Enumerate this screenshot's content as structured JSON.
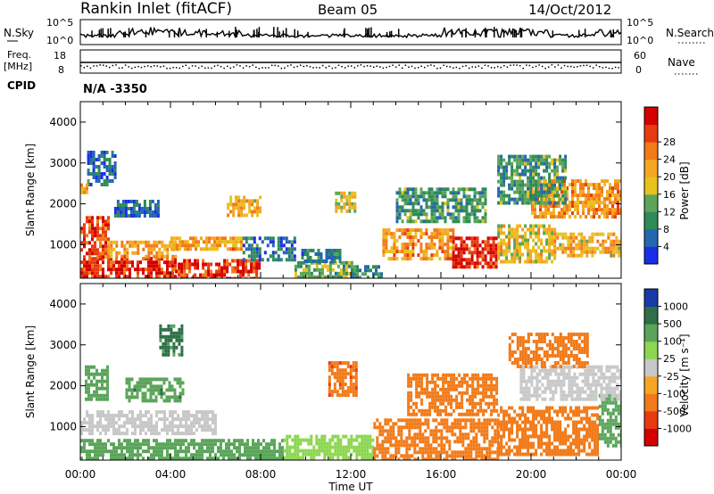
{
  "header": {
    "station": "Rankin Inlet (fitACF)",
    "beam": "Beam 05",
    "date": "14/Oct/2012"
  },
  "noise_panel": {
    "left_label": "N.Sky",
    "right_label": "N.Search",
    "left_ticks": [
      "10^5",
      "10^0"
    ],
    "right_ticks": [
      "10^5",
      "10^0"
    ]
  },
  "freq_panel": {
    "left_label_line1": "Freq.",
    "left_label_line2": "[MHz]",
    "right_label": "Nave",
    "left_ticks": [
      "18",
      "8"
    ],
    "right_ticks": [
      "60",
      "0"
    ]
  },
  "cpid": {
    "label": "CPID",
    "value": "N/A -3350"
  },
  "chart_data": [
    {
      "type": "heatmap",
      "title": "",
      "xlabel": "Time UT",
      "ylabel": "Slant Range [km]",
      "x_ticks": [
        "00:00",
        "04:00",
        "08:00",
        "12:00",
        "16:00",
        "20:00",
        "00:00"
      ],
      "y_ticks": [
        "1000",
        "2000",
        "3000",
        "4000"
      ],
      "ylim": [
        180,
        4500
      ],
      "colorbar": {
        "label": "Power [dB]",
        "ticks": [
          "4",
          "8",
          "12",
          "16",
          "20",
          "24",
          "28"
        ],
        "colors": [
          "#1a2ee8",
          "#2466b0",
          "#2e8b57",
          "#5aa55a",
          "#e8c21a",
          "#f5a623",
          "#f27a18",
          "#e83a10",
          "#d40000"
        ]
      },
      "regions": [
        {
          "t0": 0.0,
          "t1": 4.2,
          "r0": 180,
          "r1": 700,
          "value": 28
        },
        {
          "t0": 0.0,
          "t1": 1.2,
          "r0": 700,
          "r1": 1700,
          "value": 26
        },
        {
          "t0": 1.2,
          "t1": 4.2,
          "r0": 700,
          "r1": 1100,
          "value": 20
        },
        {
          "t0": 4.2,
          "t1": 8.0,
          "r0": 180,
          "r1": 650,
          "value": 27
        },
        {
          "t0": 4.0,
          "t1": 7.2,
          "r0": 900,
          "r1": 1200,
          "value": 20
        },
        {
          "t0": 7.2,
          "t1": 9.5,
          "r0": 600,
          "r1": 1200,
          "value": 6
        },
        {
          "t0": 9.5,
          "t1": 12.0,
          "r0": 200,
          "r1": 600,
          "value": 12
        },
        {
          "t0": 9.8,
          "t1": 11.5,
          "r0": 600,
          "r1": 900,
          "value": 7
        },
        {
          "t0": 12.0,
          "t1": 13.4,
          "r0": 200,
          "r1": 500,
          "value": 8
        },
        {
          "t0": 13.4,
          "t1": 16.5,
          "r0": 700,
          "r1": 1400,
          "value": 21
        },
        {
          "t0": 16.5,
          "t1": 18.5,
          "r0": 450,
          "r1": 1200,
          "value": 29
        },
        {
          "t0": 18.5,
          "t1": 21.0,
          "r0": 600,
          "r1": 1500,
          "value": 17
        },
        {
          "t0": 21.0,
          "t1": 24.0,
          "r0": 700,
          "r1": 1300,
          "value": 19
        },
        {
          "t0": 20.0,
          "t1": 24.0,
          "r0": 1700,
          "r1": 2600,
          "value": 21
        },
        {
          "t0": 18.5,
          "t1": 21.5,
          "r0": 2000,
          "r1": 3200,
          "value": 10
        },
        {
          "t0": 14.0,
          "t1": 18.0,
          "r0": 1600,
          "r1": 2400,
          "value": 10
        },
        {
          "t0": 1.5,
          "t1": 3.5,
          "r0": 1700,
          "r1": 2100,
          "value": 5
        },
        {
          "t0": 6.5,
          "t1": 8.0,
          "r0": 1700,
          "r1": 2200,
          "value": 19
        },
        {
          "t0": 0.3,
          "t1": 1.5,
          "r0": 2500,
          "r1": 3300,
          "value": 6
        },
        {
          "t0": 11.3,
          "t1": 12.2,
          "r0": 1800,
          "r1": 2300,
          "value": 16
        },
        {
          "t0": 0.0,
          "t1": 0.3,
          "r0": 2300,
          "r1": 2500,
          "value": 20
        }
      ]
    },
    {
      "type": "heatmap",
      "title": "",
      "xlabel": "Time UT",
      "ylabel": "Slant Range [km]",
      "x_ticks": [
        "00:00",
        "04:00",
        "08:00",
        "12:00",
        "16:00",
        "20:00",
        "00:00"
      ],
      "y_ticks": [
        "1000",
        "2000",
        "3000",
        "4000"
      ],
      "ylim": [
        180,
        4500
      ],
      "colorbar": {
        "label": "Velocity [m s⁻¹]",
        "ticks": [
          "1000",
          "500",
          "100",
          "25",
          "-25",
          "-100",
          "-500",
          "-1000"
        ],
        "colors": [
          "#1a3aa8",
          "#2e6e48",
          "#5aa55a",
          "#8cd650",
          "#c8c8c8",
          "#f5a623",
          "#f27a18",
          "#e83a10",
          "#d40000"
        ]
      },
      "regions": [
        {
          "t0": 0.0,
          "t1": 9.0,
          "r0": 180,
          "r1": 700,
          "value": 150
        },
        {
          "t0": 0.0,
          "t1": 6.0,
          "r0": 800,
          "r1": 1400,
          "value": 0
        },
        {
          "t0": 9.0,
          "t1": 13.0,
          "r0": 180,
          "r1": 800,
          "value": 60
        },
        {
          "t0": 13.0,
          "t1": 18.5,
          "r0": 200,
          "r1": 1200,
          "value": -300
        },
        {
          "t0": 18.5,
          "t1": 23.0,
          "r0": 300,
          "r1": 1500,
          "value": -300
        },
        {
          "t0": 23.0,
          "t1": 24.0,
          "r0": 500,
          "r1": 1800,
          "value": 200
        },
        {
          "t0": 19.5,
          "t1": 24.0,
          "r0": 1700,
          "r1": 2500,
          "value": 0
        },
        {
          "t0": 14.5,
          "t1": 18.5,
          "r0": 1300,
          "r1": 2300,
          "value": -300
        },
        {
          "t0": 19.0,
          "t1": 22.5,
          "r0": 2500,
          "r1": 3300,
          "value": -250
        },
        {
          "t0": 11.0,
          "t1": 12.2,
          "r0": 1800,
          "r1": 2600,
          "value": -400
        },
        {
          "t0": 3.5,
          "t1": 4.5,
          "r0": 2800,
          "r1": 3500,
          "value": 600
        },
        {
          "t0": 0.2,
          "t1": 1.2,
          "r0": 1700,
          "r1": 2500,
          "value": 150
        },
        {
          "t0": 2.0,
          "t1": 4.5,
          "r0": 1600,
          "r1": 2200,
          "value": 400
        }
      ]
    }
  ]
}
